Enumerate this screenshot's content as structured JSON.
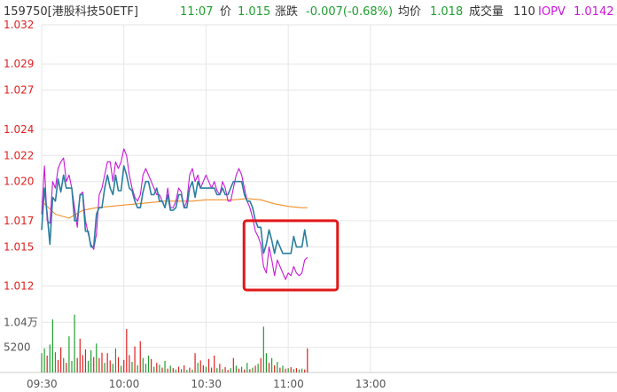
{
  "quote": {
    "code_name": "159750[港股科技50ETF]",
    "time": "11:07",
    "price_label": "价",
    "price": "1.015",
    "change_label": "涨跌",
    "change": "-0.007(-0.68%)",
    "avg_label": "均价",
    "avg": "1.018",
    "volume_label": "成交量",
    "volume": "110",
    "iopv_label": "IOPV",
    "iopv": "1.0142"
  },
  "colors": {
    "price_line": "#2a7f9e",
    "iopv_line": "#c818d8",
    "avg_line": "#f0902a",
    "up": "#e02020",
    "down": "#1f9e2f",
    "highlight_box": "#e01818",
    "grid": "#e6e6e6"
  },
  "chart_data": {
    "type": "line",
    "title": "",
    "ylim": [
      1.01,
      1.032
    ],
    "y_ticks": [
      "1.032",
      "1.029",
      "1.027",
      "1.024",
      "1.022",
      "1.020",
      "1.017",
      "1.015",
      "1.012"
    ],
    "x_ticks": [
      "09:30",
      "10:00",
      "10:30",
      "11:00",
      "13:00"
    ],
    "volume_ticks": [
      "1.04万",
      "5200"
    ],
    "series": [
      {
        "name": "价",
        "x": [
          "09:30",
          "09:31",
          "09:32",
          "09:33",
          "09:34",
          "09:35",
          "09:36",
          "09:37",
          "09:38",
          "09:39",
          "09:40",
          "09:41",
          "09:42",
          "09:43",
          "09:44",
          "09:45",
          "09:46",
          "09:47",
          "09:48",
          "09:49",
          "09:50",
          "09:51",
          "09:52",
          "09:53",
          "09:54",
          "09:55",
          "09:56",
          "09:57",
          "09:58",
          "09:59",
          "10:00",
          "10:01",
          "10:02",
          "10:03",
          "10:04",
          "10:05",
          "10:06",
          "10:07",
          "10:08",
          "10:09",
          "10:10",
          "10:11",
          "10:12",
          "10:13",
          "10:14",
          "10:15",
          "10:16",
          "10:17",
          "10:18",
          "10:19",
          "10:20",
          "10:21",
          "10:22",
          "10:23",
          "10:24",
          "10:25",
          "10:26",
          "10:27",
          "10:28",
          "10:29",
          "10:30",
          "10:31",
          "10:32",
          "10:33",
          "10:34",
          "10:35",
          "10:36",
          "10:37",
          "10:38",
          "10:39",
          "10:40",
          "10:41",
          "10:42",
          "10:43",
          "10:44",
          "10:45",
          "10:46",
          "10:47",
          "10:48",
          "10:49",
          "10:50",
          "10:51",
          "10:52",
          "10:53",
          "10:54",
          "10:55",
          "10:56",
          "10:57",
          "10:58",
          "10:59",
          "11:00",
          "11:01",
          "11:02",
          "11:03",
          "11:04",
          "11:05",
          "11:06",
          "11:07"
        ],
        "values": [
          1.0163,
          1.0195,
          1.0175,
          1.0152,
          1.0188,
          1.0185,
          1.0202,
          1.0192,
          1.0205,
          1.0195,
          1.0195,
          1.0195,
          1.017,
          1.017,
          1.019,
          1.019,
          1.0162,
          1.0162,
          1.015,
          1.015,
          1.0175,
          1.018,
          1.018,
          1.0195,
          1.0205,
          1.0195,
          1.019,
          1.0205,
          1.0193,
          1.0193,
          1.0212,
          1.0205,
          1.0195,
          1.0193,
          1.0185,
          1.018,
          1.018,
          1.0192,
          1.02,
          1.02,
          1.019,
          1.019,
          1.0195,
          1.0185,
          1.0185,
          1.018,
          1.019,
          1.0178,
          1.0178,
          1.018,
          1.019,
          1.019,
          1.018,
          1.018,
          1.0195,
          1.02,
          1.0188,
          1.02,
          1.0195,
          1.0195,
          1.0195,
          1.0195,
          1.0195,
          1.0195,
          1.019,
          1.019,
          1.0195,
          1.019,
          1.019,
          1.0195,
          1.02,
          1.02,
          1.02,
          1.02,
          1.019,
          1.0185,
          1.0185,
          1.018,
          1.017,
          1.0165,
          1.0165,
          1.0145,
          1.0152,
          1.0163,
          1.0155,
          1.0145,
          1.0155,
          1.015,
          1.0145,
          1.0145,
          1.0145,
          1.0145,
          1.0158,
          1.015,
          1.015,
          1.015,
          1.0163,
          1.015
        ]
      },
      {
        "name": "IOPV",
        "x": [
          "09:30",
          "09:31",
          "09:32",
          "09:33",
          "09:34",
          "09:35",
          "09:36",
          "09:37",
          "09:38",
          "09:39",
          "09:40",
          "09:41",
          "09:42",
          "09:43",
          "09:44",
          "09:45",
          "09:46",
          "09:47",
          "09:48",
          "09:49",
          "09:50",
          "09:51",
          "09:52",
          "09:53",
          "09:54",
          "09:55",
          "09:56",
          "09:57",
          "09:58",
          "09:59",
          "10:00",
          "10:01",
          "10:02",
          "10:03",
          "10:04",
          "10:05",
          "10:06",
          "10:07",
          "10:08",
          "10:09",
          "10:10",
          "10:11",
          "10:12",
          "10:13",
          "10:14",
          "10:15",
          "10:16",
          "10:17",
          "10:18",
          "10:19",
          "10:20",
          "10:21",
          "10:22",
          "10:23",
          "10:24",
          "10:25",
          "10:26",
          "10:27",
          "10:28",
          "10:29",
          "10:30",
          "10:31",
          "10:32",
          "10:33",
          "10:34",
          "10:35",
          "10:36",
          "10:37",
          "10:38",
          "10:39",
          "10:40",
          "10:41",
          "10:42",
          "10:43",
          "10:44",
          "10:45",
          "10:46",
          "10:47",
          "10:48",
          "10:49",
          "10:50",
          "10:51",
          "10:52",
          "10:53",
          "10:54",
          "10:55",
          "10:56",
          "10:57",
          "10:58",
          "10:59",
          "11:00",
          "11:01",
          "11:02",
          "11:03",
          "11:04",
          "11:05",
          "11:06",
          "11:07"
        ],
        "values": [
          1.0175,
          1.0212,
          1.017,
          1.0168,
          1.02,
          1.0195,
          1.021,
          1.0215,
          1.0218,
          1.02,
          1.0205,
          1.0195,
          1.018,
          1.0165,
          1.019,
          1.0192,
          1.017,
          1.016,
          1.0152,
          1.0148,
          1.016,
          1.019,
          1.0195,
          1.0205,
          1.0215,
          1.0215,
          1.02,
          1.0215,
          1.021,
          1.0215,
          1.0225,
          1.022,
          1.0205,
          1.0195,
          1.0188,
          1.0185,
          1.019,
          1.0205,
          1.021,
          1.0205,
          1.02,
          1.0195,
          1.019,
          1.019,
          1.0185,
          1.018,
          1.0195,
          1.018,
          1.018,
          1.0185,
          1.0195,
          1.0192,
          1.018,
          1.0185,
          1.0205,
          1.021,
          1.02,
          1.0205,
          1.0195,
          1.02,
          1.0205,
          1.02,
          1.0195,
          1.02,
          1.0193,
          1.019,
          1.02,
          1.0195,
          1.0185,
          1.0185,
          1.0195,
          1.0205,
          1.021,
          1.0205,
          1.0195,
          1.0185,
          1.018,
          1.0172,
          1.0162,
          1.0158,
          1.0152,
          1.0135,
          1.013,
          1.015,
          1.014,
          1.0128,
          1.014,
          1.0135,
          1.013,
          1.0125,
          1.013,
          1.0128,
          1.0135,
          1.013,
          1.0128,
          1.013,
          1.014,
          1.0142
        ]
      },
      {
        "name": "均价",
        "x": [
          "09:30",
          "09:35",
          "09:40",
          "09:45",
          "09:50",
          "09:55",
          "10:00",
          "10:05",
          "10:10",
          "10:15",
          "10:20",
          "10:25",
          "10:30",
          "10:35",
          "10:40",
          "10:45",
          "10:50",
          "10:55",
          "11:00",
          "11:05",
          "11:07"
        ],
        "values": [
          1.0185,
          1.0175,
          1.0172,
          1.0178,
          1.018,
          1.0181,
          1.0182,
          1.0183,
          1.0184,
          1.0185,
          1.0185,
          1.0185,
          1.0186,
          1.0186,
          1.0186,
          1.0187,
          1.0186,
          1.0183,
          1.0181,
          1.018,
          1.018
        ]
      }
    ],
    "volume": [
      {
        "t": "09:30",
        "v": 4000,
        "dir": "down"
      },
      {
        "t": "09:31",
        "v": 5000,
        "dir": "down"
      },
      {
        "t": "09:32",
        "v": 3500,
        "dir": "up"
      },
      {
        "t": "09:33",
        "v": 5800,
        "dir": "down"
      },
      {
        "t": "09:34",
        "v": 11000,
        "dir": "down"
      },
      {
        "t": "09:35",
        "v": 4200,
        "dir": "down"
      },
      {
        "t": "09:36",
        "v": 2600,
        "dir": "up"
      },
      {
        "t": "09:37",
        "v": 5200,
        "dir": "up"
      },
      {
        "t": "09:38",
        "v": 3000,
        "dir": "down"
      },
      {
        "t": "09:39",
        "v": 2000,
        "dir": "up"
      },
      {
        "t": "09:40",
        "v": 7500,
        "dir": "down"
      },
      {
        "t": "09:41",
        "v": 2400,
        "dir": "down"
      },
      {
        "t": "09:42",
        "v": 12000,
        "dir": "down"
      },
      {
        "t": "09:43",
        "v": 3000,
        "dir": "up"
      },
      {
        "t": "09:44",
        "v": 7000,
        "dir": "up"
      },
      {
        "t": "09:45",
        "v": 3600,
        "dir": "up"
      },
      {
        "t": "09:46",
        "v": 4800,
        "dir": "up"
      },
      {
        "t": "09:47",
        "v": 2400,
        "dir": "down"
      },
      {
        "t": "09:48",
        "v": 4600,
        "dir": "down"
      },
      {
        "t": "09:49",
        "v": 3200,
        "dir": "up"
      },
      {
        "t": "09:50",
        "v": 6000,
        "dir": "down"
      },
      {
        "t": "09:51",
        "v": 3000,
        "dir": "up"
      },
      {
        "t": "09:52",
        "v": 4100,
        "dir": "up"
      },
      {
        "t": "09:53",
        "v": 2000,
        "dir": "down"
      },
      {
        "t": "09:54",
        "v": 4000,
        "dir": "up"
      },
      {
        "t": "09:55",
        "v": 2500,
        "dir": "up"
      },
      {
        "t": "09:56",
        "v": 1800,
        "dir": "down"
      },
      {
        "t": "09:57",
        "v": 5000,
        "dir": "down"
      },
      {
        "t": "09:58",
        "v": 3200,
        "dir": "up"
      },
      {
        "t": "09:59",
        "v": 1400,
        "dir": "down"
      },
      {
        "t": "10:00",
        "v": 2600,
        "dir": "up"
      },
      {
        "t": "10:01",
        "v": 9000,
        "dir": "up"
      },
      {
        "t": "10:02",
        "v": 3600,
        "dir": "up"
      },
      {
        "t": "10:03",
        "v": 2200,
        "dir": "down"
      },
      {
        "t": "10:04",
        "v": 5400,
        "dir": "up"
      },
      {
        "t": "10:05",
        "v": 1500,
        "dir": "down"
      },
      {
        "t": "10:06",
        "v": 6500,
        "dir": "up"
      },
      {
        "t": "10:07",
        "v": 3000,
        "dir": "down"
      },
      {
        "t": "10:08",
        "v": 1800,
        "dir": "down"
      },
      {
        "t": "10:09",
        "v": 3500,
        "dir": "down"
      },
      {
        "t": "10:10",
        "v": 2800,
        "dir": "up"
      },
      {
        "t": "10:11",
        "v": 1200,
        "dir": "down"
      },
      {
        "t": "10:12",
        "v": 2000,
        "dir": "up"
      },
      {
        "t": "10:13",
        "v": 1600,
        "dir": "down"
      },
      {
        "t": "10:14",
        "v": 1000,
        "dir": "up"
      },
      {
        "t": "10:15",
        "v": 2400,
        "dir": "down"
      },
      {
        "t": "10:16",
        "v": 800,
        "dir": "up"
      },
      {
        "t": "10:17",
        "v": 1400,
        "dir": "down"
      },
      {
        "t": "10:18",
        "v": 900,
        "dir": "up"
      },
      {
        "t": "10:19",
        "v": 600,
        "dir": "down"
      },
      {
        "t": "10:20",
        "v": 1200,
        "dir": "up"
      },
      {
        "t": "10:21",
        "v": 700,
        "dir": "down"
      },
      {
        "t": "10:22",
        "v": 1500,
        "dir": "up"
      },
      {
        "t": "10:23",
        "v": 500,
        "dir": "down"
      },
      {
        "t": "10:24",
        "v": 1000,
        "dir": "up"
      },
      {
        "t": "10:25",
        "v": 600,
        "dir": "down"
      },
      {
        "t": "10:26",
        "v": 4000,
        "dir": "up"
      },
      {
        "t": "10:27",
        "v": 2000,
        "dir": "down"
      },
      {
        "t": "10:28",
        "v": 2500,
        "dir": "up"
      },
      {
        "t": "10:29",
        "v": 1500,
        "dir": "up"
      },
      {
        "t": "10:30",
        "v": 1200,
        "dir": "down"
      },
      {
        "t": "10:31",
        "v": 2800,
        "dir": "up"
      },
      {
        "t": "10:32",
        "v": 1000,
        "dir": "up"
      },
      {
        "t": "10:33",
        "v": 3500,
        "dir": "up"
      },
      {
        "t": "10:34",
        "v": 900,
        "dir": "down"
      },
      {
        "t": "10:35",
        "v": 1800,
        "dir": "up"
      },
      {
        "t": "10:36",
        "v": 700,
        "dir": "down"
      },
      {
        "t": "10:37",
        "v": 1100,
        "dir": "up"
      },
      {
        "t": "10:38",
        "v": 500,
        "dir": "up"
      },
      {
        "t": "10:39",
        "v": 900,
        "dir": "down"
      },
      {
        "t": "10:40",
        "v": 3000,
        "dir": "up"
      },
      {
        "t": "10:41",
        "v": 1400,
        "dir": "down"
      },
      {
        "t": "10:42",
        "v": 800,
        "dir": "up"
      },
      {
        "t": "10:43",
        "v": 1200,
        "dir": "down"
      },
      {
        "t": "10:44",
        "v": 600,
        "dir": "up"
      },
      {
        "t": "10:45",
        "v": 2000,
        "dir": "down"
      },
      {
        "t": "10:46",
        "v": 700,
        "dir": "up"
      },
      {
        "t": "10:47",
        "v": 1000,
        "dir": "down"
      },
      {
        "t": "10:48",
        "v": 1400,
        "dir": "up"
      },
      {
        "t": "10:49",
        "v": 1800,
        "dir": "down"
      },
      {
        "t": "10:50",
        "v": 3000,
        "dir": "up"
      },
      {
        "t": "10:51",
        "v": 9500,
        "dir": "down"
      },
      {
        "t": "10:52",
        "v": 4000,
        "dir": "down"
      },
      {
        "t": "10:53",
        "v": 2000,
        "dir": "up"
      },
      {
        "t": "10:54",
        "v": 3000,
        "dir": "down"
      },
      {
        "t": "10:55",
        "v": 1500,
        "dir": "up"
      },
      {
        "t": "10:56",
        "v": 2200,
        "dir": "down"
      },
      {
        "t": "10:57",
        "v": 1000,
        "dir": "up"
      },
      {
        "t": "10:58",
        "v": 1400,
        "dir": "down"
      },
      {
        "t": "10:59",
        "v": 800,
        "dir": "up"
      },
      {
        "t": "11:00",
        "v": 900,
        "dir": "down"
      },
      {
        "t": "11:01",
        "v": 1100,
        "dir": "up"
      },
      {
        "t": "11:02",
        "v": 700,
        "dir": "down"
      },
      {
        "t": "11:03",
        "v": 900,
        "dir": "up"
      },
      {
        "t": "11:04",
        "v": 600,
        "dir": "down"
      },
      {
        "t": "11:05",
        "v": 800,
        "dir": "down"
      },
      {
        "t": "11:06",
        "v": 600,
        "dir": "up"
      },
      {
        "t": "11:07",
        "v": 5000,
        "dir": "up"
      }
    ],
    "volume_max": 12500,
    "highlight_range": {
      "x": [
        "10:50",
        "11:07"
      ],
      "y": [
        1.0117,
        1.017
      ]
    }
  }
}
